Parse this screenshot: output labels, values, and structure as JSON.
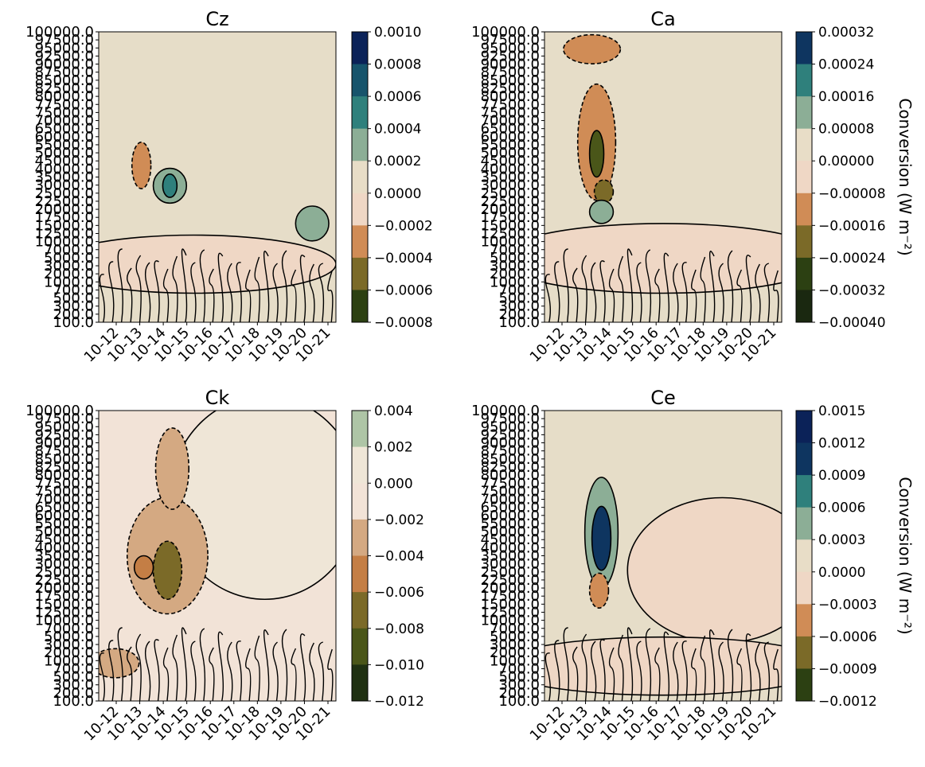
{
  "cbar_label": "Conversion  (W m⁻²)",
  "colors": {
    "diverging": [
      "#1a2810",
      "#2c4012",
      "#4a5619",
      "#7b6a28",
      "#a87e3b",
      "#d08c56",
      "#e6b699",
      "#efd7c5",
      "#e8ddc7",
      "#aec5a6",
      "#8cae96",
      "#2f807c",
      "#17546c",
      "#0e3560",
      "#0b2258"
    ]
  },
  "chart_data": [
    {
      "type": "heatmap",
      "title": "Cz",
      "x": [
        "10-12",
        "10-13",
        "10-14",
        "10-15",
        "10-16",
        "10-17",
        "10-18",
        "10-19",
        "10-20",
        "10-21"
      ],
      "y_ticks": [
        "100000.0",
        "97500.0",
        "95000.0",
        "92500.0",
        "90000.0",
        "87500.0",
        "85000.0",
        "82500.0",
        "80000.0",
        "77500.0",
        "75000.0",
        "70000.0",
        "65000.0",
        "60000.0",
        "55000.0",
        "50000.0",
        "45000.0",
        "40000.0",
        "35000.0",
        "30000.0",
        "25000.0",
        "22500.0",
        "20000.0",
        "17500.0",
        "15000.0",
        "12500.0",
        "10000.0",
        "7000.0",
        "5000.0",
        "3000.0",
        "2000.0",
        "1000.0",
        "700.0",
        "500.0",
        "300.0",
        "200.0",
        "100.0"
      ],
      "colorbar": [
        "0.0010",
        "0.0008",
        "0.0006",
        "0.0004",
        "0.0002",
        "0.0000",
        "−0.0002",
        "−0.0004",
        "−0.0006",
        "−0.0008"
      ],
      "cbar_colors": [
        "#0b2258",
        "#17546c",
        "#2f807c",
        "#8cae96",
        "#e8ddc7",
        "#efd7c5",
        "#d08c56",
        "#7b6a28",
        "#2c4012"
      ],
      "show_cbar_label": false,
      "background": "#e6ddc8",
      "blobs": [
        {
          "cx": 0.18,
          "cy": 0.46,
          "rx": 0.04,
          "ry": 0.08,
          "color": "#d08c56"
        },
        {
          "cx": 0.3,
          "cy": 0.53,
          "rx": 0.07,
          "ry": 0.06,
          "color": "#8cae96"
        },
        {
          "cx": 0.3,
          "cy": 0.53,
          "rx": 0.03,
          "ry": 0.04,
          "color": "#2f807c"
        },
        {
          "cx": 0.9,
          "cy": 0.66,
          "rx": 0.07,
          "ry": 0.06,
          "color": "#8cae96"
        },
        {
          "cx": 0.4,
          "cy": 0.8,
          "rx": 0.6,
          "ry": 0.1,
          "color": "#efd7c5"
        }
      ]
    },
    {
      "type": "heatmap",
      "title": "Ca",
      "x": [
        "10-12",
        "10-13",
        "10-14",
        "10-15",
        "10-16",
        "10-17",
        "10-18",
        "10-19",
        "10-20",
        "10-21"
      ],
      "y_ticks": [
        "100000.0",
        "97500.0",
        "95000.0",
        "92500.0",
        "90000.0",
        "87500.0",
        "85000.0",
        "82500.0",
        "80000.0",
        "77500.0",
        "75000.0",
        "70000.0",
        "65000.0",
        "60000.0",
        "55000.0",
        "50000.0",
        "45000.0",
        "40000.0",
        "35000.0",
        "30000.0",
        "25000.0",
        "22500.0",
        "20000.0",
        "17500.0",
        "15000.0",
        "12500.0",
        "10000.0",
        "7000.0",
        "5000.0",
        "3000.0",
        "2000.0",
        "1000.0",
        "700.0",
        "500.0",
        "300.0",
        "200.0",
        "100.0"
      ],
      "colorbar": [
        "0.00032",
        "0.00024",
        "0.00016",
        "0.00008",
        "0.00000",
        "−0.00008",
        "−0.00016",
        "−0.00024",
        "−0.00032",
        "−0.00040"
      ],
      "cbar_colors": [
        "#0e3560",
        "#2f807c",
        "#8cae96",
        "#e8ddc7",
        "#efd7c5",
        "#d08c56",
        "#7b6a28",
        "#2c4012",
        "#1a2810"
      ],
      "show_cbar_label": true,
      "background": "#e6ddc8",
      "blobs": [
        {
          "cx": 0.2,
          "cy": 0.06,
          "rx": 0.12,
          "ry": 0.05,
          "color": "#d08c56"
        },
        {
          "cx": 0.22,
          "cy": 0.38,
          "rx": 0.08,
          "ry": 0.2,
          "color": "#d08c56"
        },
        {
          "cx": 0.22,
          "cy": 0.42,
          "rx": 0.03,
          "ry": 0.08,
          "color": "#4a5619"
        },
        {
          "cx": 0.25,
          "cy": 0.55,
          "rx": 0.04,
          "ry": 0.04,
          "color": "#7b6a28"
        },
        {
          "cx": 0.24,
          "cy": 0.62,
          "rx": 0.05,
          "ry": 0.04,
          "color": "#8cae96"
        },
        {
          "cx": 0.5,
          "cy": 0.78,
          "rx": 0.7,
          "ry": 0.12,
          "color": "#efd7c5"
        }
      ]
    },
    {
      "type": "heatmap",
      "title": "Ck",
      "x": [
        "10-12",
        "10-13",
        "10-14",
        "10-15",
        "10-16",
        "10-17",
        "10-18",
        "10-19",
        "10-20",
        "10-21"
      ],
      "y_ticks": [
        "100000.0",
        "97500.0",
        "95000.0",
        "92500.0",
        "90000.0",
        "87500.0",
        "85000.0",
        "82500.0",
        "80000.0",
        "77500.0",
        "75000.0",
        "70000.0",
        "65000.0",
        "60000.0",
        "55000.0",
        "50000.0",
        "45000.0",
        "40000.0",
        "35000.0",
        "30000.0",
        "25000.0",
        "22500.0",
        "20000.0",
        "17500.0",
        "15000.0",
        "12500.0",
        "10000.0",
        "7000.0",
        "5000.0",
        "3000.0",
        "2000.0",
        "1000.0",
        "700.0",
        "500.0",
        "300.0",
        "200.0",
        "100.0"
      ],
      "colorbar": [
        "0.004",
        "0.002",
        "0.000",
        "−0.002",
        "−0.004",
        "−0.006",
        "−0.008",
        "−0.010",
        "−0.012"
      ],
      "cbar_colors": [
        "#aec5a6",
        "#efe6d7",
        "#f2e3d7",
        "#d4a982",
        "#c47e45",
        "#7b6a28",
        "#4a5619",
        "#1f3012"
      ],
      "show_cbar_label": false,
      "background": "#f2e3d7",
      "blobs": [
        {
          "cx": 0.7,
          "cy": 0.3,
          "rx": 0.4,
          "ry": 0.35,
          "color": "#efe6d7"
        },
        {
          "cx": 0.29,
          "cy": 0.5,
          "rx": 0.17,
          "ry": 0.2,
          "color": "#d4a982"
        },
        {
          "cx": 0.31,
          "cy": 0.2,
          "rx": 0.07,
          "ry": 0.14,
          "color": "#d4a982"
        },
        {
          "cx": 0.29,
          "cy": 0.55,
          "rx": 0.06,
          "ry": 0.1,
          "color": "#7b6a28"
        },
        {
          "cx": 0.19,
          "cy": 0.54,
          "rx": 0.04,
          "ry": 0.04,
          "color": "#c47e45"
        },
        {
          "cx": 0.07,
          "cy": 0.87,
          "rx": 0.1,
          "ry": 0.05,
          "color": "#d4a982"
        }
      ]
    },
    {
      "type": "heatmap",
      "title": "Ce",
      "x": [
        "10-12",
        "10-13",
        "10-14",
        "10-15",
        "10-16",
        "10-17",
        "10-18",
        "10-19",
        "10-20",
        "10-21"
      ],
      "y_ticks": [
        "100000.0",
        "97500.0",
        "95000.0",
        "92500.0",
        "90000.0",
        "87500.0",
        "85000.0",
        "82500.0",
        "80000.0",
        "77500.0",
        "75000.0",
        "70000.0",
        "65000.0",
        "60000.0",
        "55000.0",
        "50000.0",
        "45000.0",
        "40000.0",
        "35000.0",
        "30000.0",
        "25000.0",
        "22500.0",
        "20000.0",
        "17500.0",
        "15000.0",
        "12500.0",
        "10000.0",
        "7000.0",
        "5000.0",
        "3000.0",
        "2000.0",
        "1000.0",
        "700.0",
        "500.0",
        "300.0",
        "200.0",
        "100.0"
      ],
      "colorbar": [
        "0.0015",
        "0.0012",
        "0.0009",
        "0.0006",
        "0.0003",
        "0.0000",
        "−0.0003",
        "−0.0006",
        "−0.0009",
        "−0.0012"
      ],
      "cbar_colors": [
        "#0b2258",
        "#0e3560",
        "#2f807c",
        "#8cae96",
        "#e8ddc7",
        "#efd7c5",
        "#d08c56",
        "#7b6a28",
        "#2c4012"
      ],
      "show_cbar_label": true,
      "background": "#e6ddc8",
      "blobs": [
        {
          "cx": 0.75,
          "cy": 0.55,
          "rx": 0.4,
          "ry": 0.25,
          "color": "#efd7c5"
        },
        {
          "cx": 0.24,
          "cy": 0.42,
          "rx": 0.07,
          "ry": 0.19,
          "color": "#8cae96"
        },
        {
          "cx": 0.24,
          "cy": 0.44,
          "rx": 0.04,
          "ry": 0.11,
          "color": "#0e3560"
        },
        {
          "cx": 0.23,
          "cy": 0.62,
          "rx": 0.04,
          "ry": 0.06,
          "color": "#d08c56"
        },
        {
          "cx": 0.5,
          "cy": 0.88,
          "rx": 0.7,
          "ry": 0.1,
          "color": "#efd7c5"
        }
      ]
    }
  ]
}
